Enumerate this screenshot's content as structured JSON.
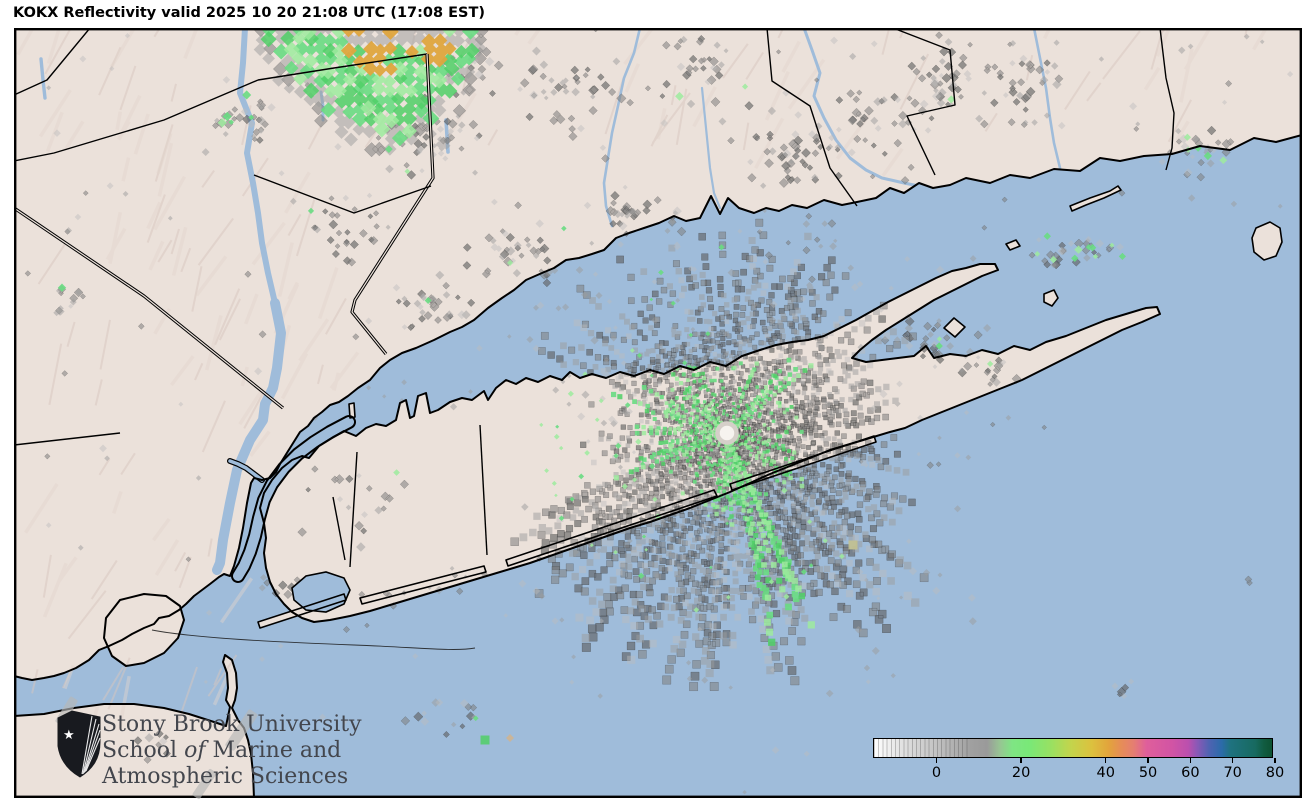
{
  "header": {
    "title": "KOKX Reflectivity valid 2025 10 20 21:08 UTC (17:08 EST)"
  },
  "branding": {
    "line1": "Stony Brook University",
    "line2_before": "School ",
    "line2_italic": "of",
    "line2_after": " Marine and",
    "line3": "Atmospheric Sciences"
  },
  "colorbar": {
    "min_value": -15,
    "max_value": 80,
    "tick_values": [
      0,
      20,
      40,
      50,
      60,
      70,
      80
    ],
    "tick_labels": [
      "0",
      "20",
      "40",
      "50",
      "60",
      "70",
      "80"
    ],
    "palette_stops": [
      {
        "value": -15,
        "color": "#ffffff"
      },
      {
        "value": -8,
        "color": "#e0e0e0"
      },
      {
        "value": 0,
        "color": "#c2c2c2"
      },
      {
        "value": 8,
        "color": "#a0a0a0"
      },
      {
        "value": 12,
        "color": "#9a9a9a"
      },
      {
        "value": 15,
        "color": "#97c493"
      },
      {
        "value": 18,
        "color": "#7fe584"
      },
      {
        "value": 22,
        "color": "#79e878"
      },
      {
        "value": 27,
        "color": "#97e163"
      },
      {
        "value": 32,
        "color": "#c3d44c"
      },
      {
        "value": 37,
        "color": "#dcc13e"
      },
      {
        "value": 41,
        "color": "#e2a43c"
      },
      {
        "value": 44,
        "color": "#e68d57"
      },
      {
        "value": 47,
        "color": "#e57e72"
      },
      {
        "value": 50,
        "color": "#df5f9b"
      },
      {
        "value": 56,
        "color": "#d254a4"
      },
      {
        "value": 60,
        "color": "#bb50ae"
      },
      {
        "value": 62,
        "color": "#8d58b6"
      },
      {
        "value": 65,
        "color": "#4f63b2"
      },
      {
        "value": 68,
        "color": "#2b6ba9"
      },
      {
        "value": 70,
        "color": "#1f7280"
      },
      {
        "value": 76,
        "color": "#176a60"
      },
      {
        "value": 78,
        "color": "#115c42"
      },
      {
        "value": 80,
        "color": "#0d5232"
      }
    ]
  },
  "map": {
    "water_color": "#9fbcda",
    "land_color": "#ebe1da",
    "clutter_gray": "#7d7d7d",
    "precip_green": "#69dc82",
    "precip_orange": "#dfa53e"
  }
}
